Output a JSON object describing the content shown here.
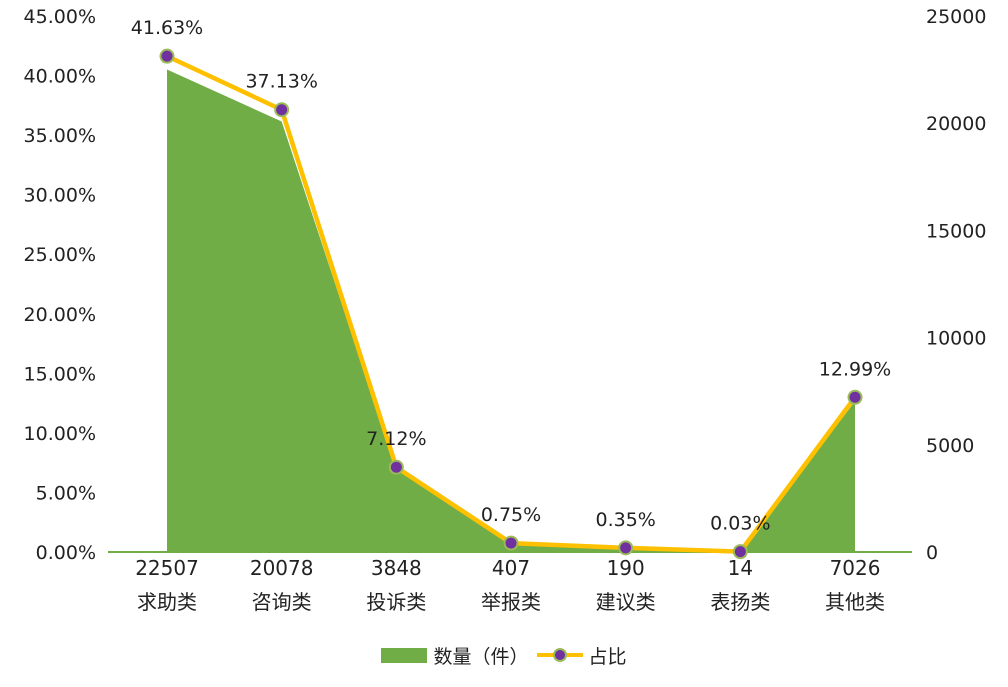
{
  "chart_data": {
    "type": "area",
    "categories": [
      "求助类",
      "咨询类",
      "投诉类",
      "举报类",
      "建议类",
      "表扬类",
      "其他类"
    ],
    "series": [
      {
        "name": "数量（件）",
        "type": "area",
        "axis": "right",
        "values": [
          22507,
          20078,
          3848,
          407,
          190,
          14,
          7026
        ],
        "color": "#70ad47"
      },
      {
        "name": "占比",
        "type": "line",
        "axis": "left",
        "values": [
          41.63,
          37.13,
          7.12,
          0.75,
          0.35,
          0.03,
          12.99
        ],
        "labels": [
          "41.63%",
          "37.13%",
          "7.12%",
          "0.75%",
          "0.35%",
          "0.03%",
          "12.99%"
        ],
        "color": "#ffc000",
        "marker_color": "#7030a0"
      }
    ],
    "category_value_labels": [
      "22507",
      "20078",
      "3848",
      "407",
      "190",
      "14",
      "7026"
    ],
    "left_axis": {
      "ylim": [
        0,
        45
      ],
      "ticks": [
        "0.00%",
        "5.00%",
        "10.00%",
        "15.00%",
        "20.00%",
        "25.00%",
        "30.00%",
        "35.00%",
        "40.00%",
        "45.00%"
      ]
    },
    "right_axis": {
      "ylim": [
        0,
        25000
      ],
      "ticks": [
        "0",
        "5000",
        "10000",
        "15000",
        "20000",
        "25000"
      ]
    },
    "grid": false,
    "legend_position": "bottom"
  }
}
